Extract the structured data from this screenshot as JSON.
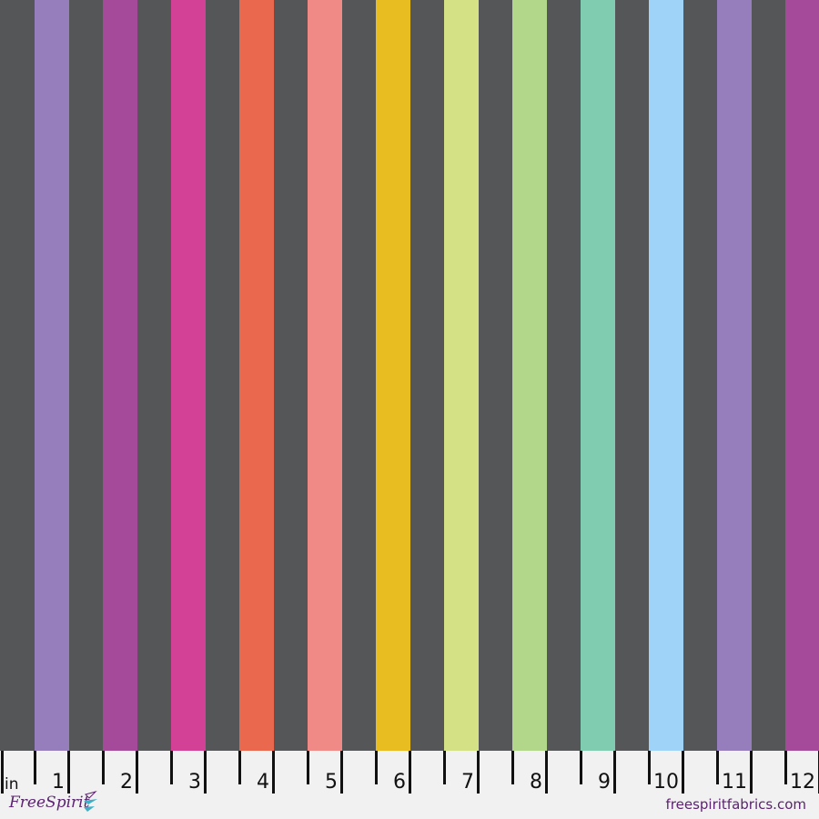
{
  "colors": {
    "background": "#545657",
    "ruler_background": "#f1f1f1",
    "stripes": [
      "#957ebb",
      "#a54a9a",
      "#d34197",
      "#ea684d",
      "#ef8a87",
      "#e8bd21",
      "#d4e184",
      "#b2d68a",
      "#7fccb1",
      "#9fd3f7",
      "#957ebb",
      "#a54a9a"
    ]
  },
  "ruler": {
    "unit": "in",
    "labels": [
      "1",
      "2",
      "3",
      "4",
      "5",
      "6",
      "7",
      "8",
      "9",
      "10",
      "11",
      "12"
    ]
  },
  "brand": {
    "logo_text": "FreeSpirit",
    "website": "freespiritfabrics.com"
  }
}
